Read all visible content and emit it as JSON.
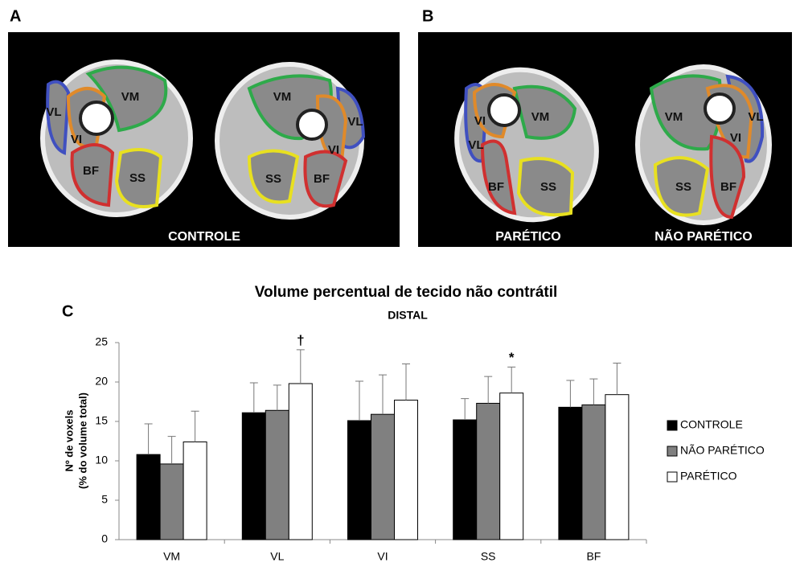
{
  "panels": [
    {
      "letter": "A",
      "captions": [
        "CONTROLE"
      ],
      "labels": [
        "VL",
        "VM",
        "VI",
        "BF",
        "SS",
        "VM",
        "VL",
        "VI",
        "SS",
        "BF"
      ]
    },
    {
      "letter": "B",
      "captions": [
        "PARÉTICO",
        "NÃO PARÉTICO"
      ],
      "labels": [
        "VI",
        "VL",
        "VM",
        "BF",
        "SS",
        "VM",
        "VL",
        "VI",
        "SS",
        "BF"
      ]
    }
  ],
  "chart_data": {
    "type": "bar",
    "letter": "C",
    "title": "Volume percentual de tecido não contrátil",
    "subtitle": "DISTAL",
    "y_label": [
      "Nº de voxels",
      "(% do volume total)"
    ],
    "categories": [
      "VM",
      "VL",
      "VI",
      "SS",
      "BF"
    ],
    "series": [
      {
        "name": "CONTROLE",
        "color": "#000000",
        "values": [
          10.8,
          16.1,
          15.1,
          15.2,
          16.8
        ],
        "errors": [
          3.9,
          3.8,
          5.0,
          2.7,
          3.4
        ]
      },
      {
        "name": "NÃO PARÉTICO",
        "color": "#808080",
        "values": [
          9.6,
          16.4,
          15.9,
          17.3,
          17.1
        ],
        "errors": [
          3.5,
          3.2,
          5.0,
          3.4,
          3.3
        ]
      },
      {
        "name": "PARÉTICO",
        "color": "#ffffff",
        "values": [
          12.4,
          19.8,
          17.7,
          18.6,
          18.4
        ],
        "errors": [
          3.9,
          4.3,
          4.6,
          3.3,
          4.0
        ]
      }
    ],
    "annotations": [
      "†",
      "*"
    ],
    "ylim": [
      0,
      25
    ],
    "yticks": [
      0,
      5,
      10,
      15,
      20,
      25
    ],
    "grid": false,
    "legend": "right"
  }
}
